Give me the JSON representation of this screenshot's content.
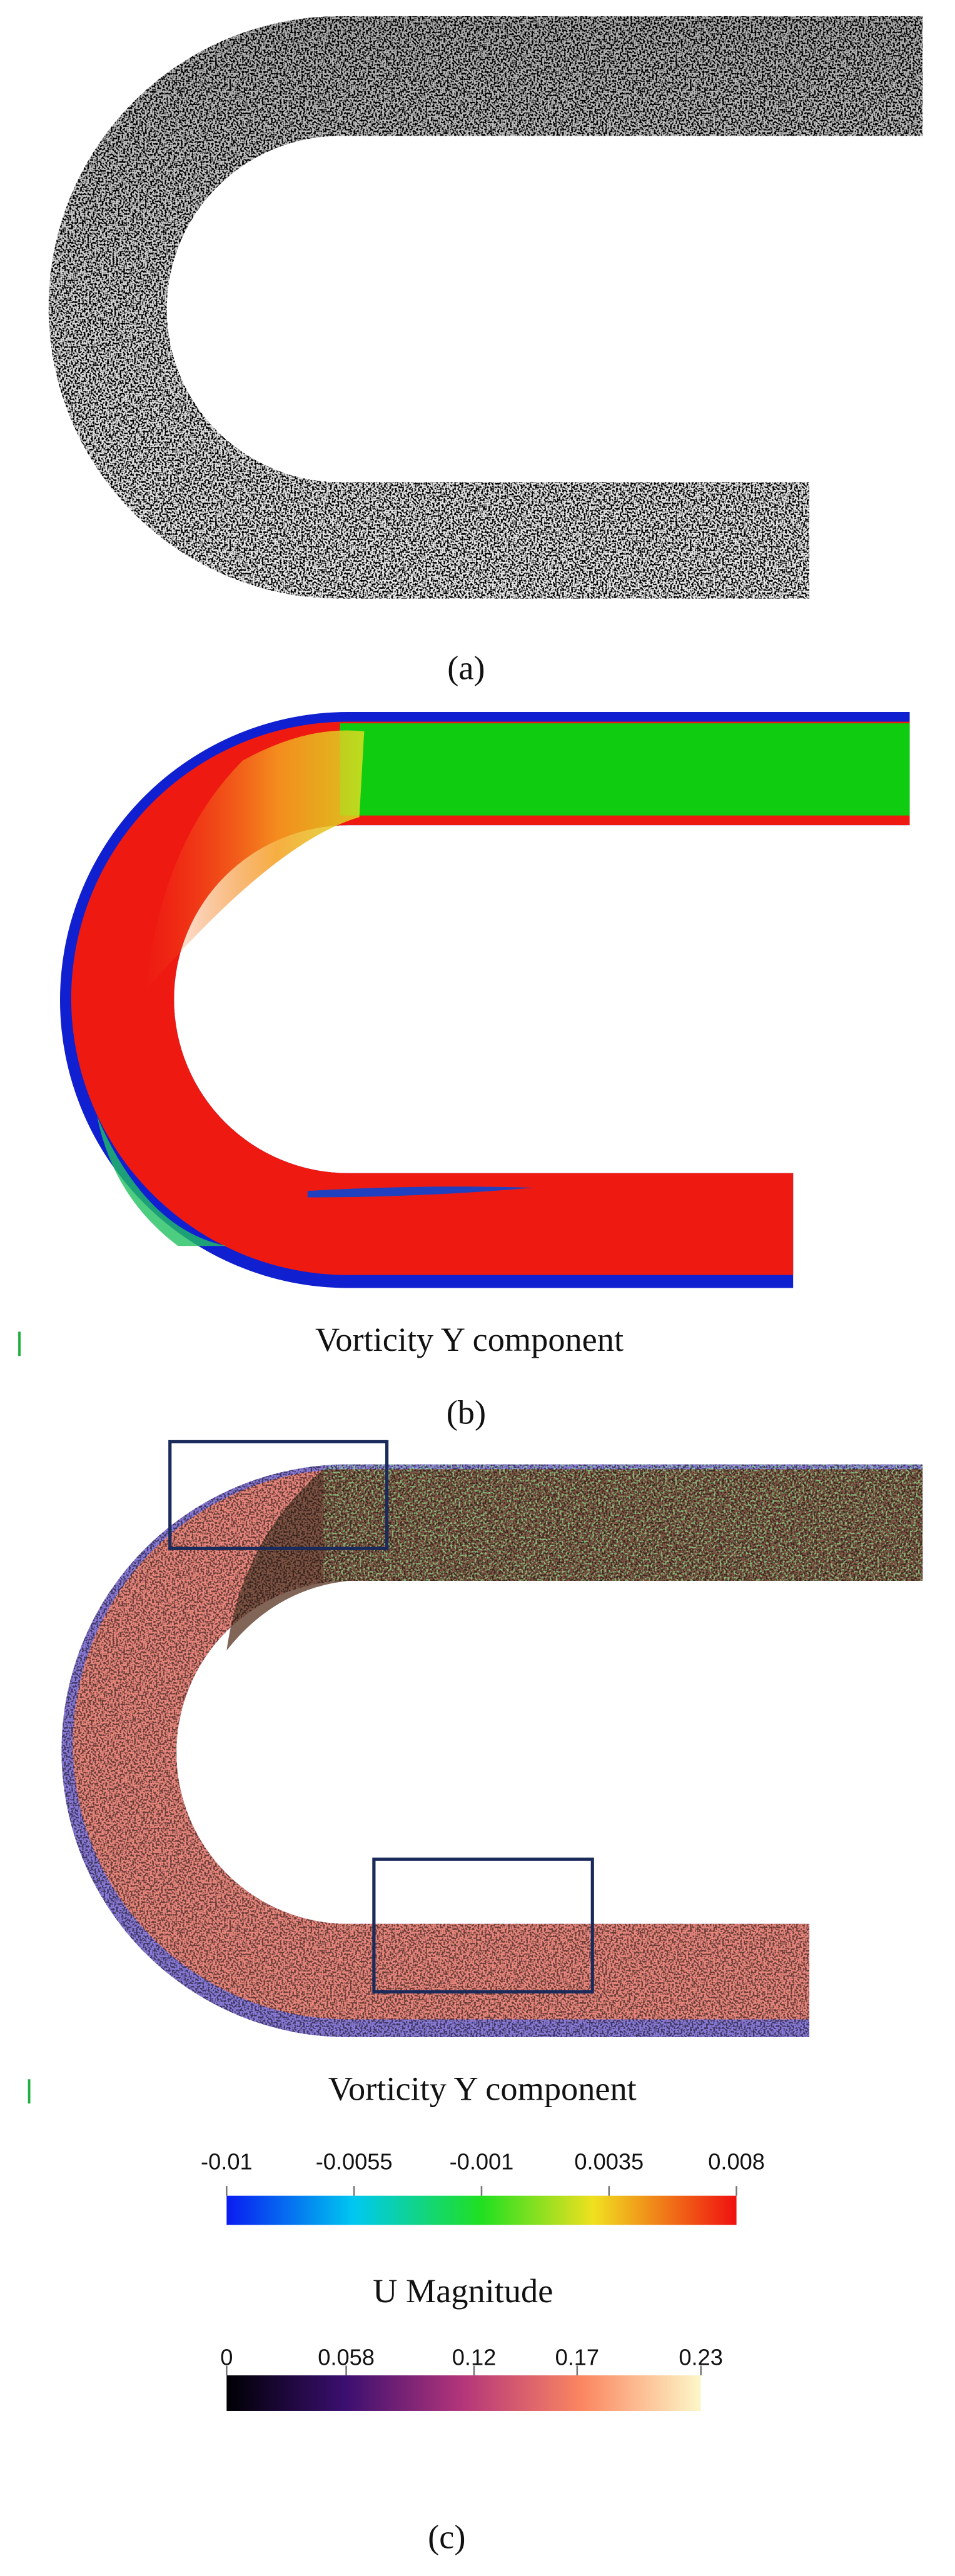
{
  "figure": {
    "panels": [
      {
        "label": "(a)"
      },
      {
        "label": "(b)",
        "caption": "Vorticity Y component"
      },
      {
        "label": "(c)",
        "caption": "Vorticity Y component"
      }
    ],
    "colorbars": [
      {
        "ticks": [
          -0.01,
          -0.0055,
          -0.001,
          0.0035,
          0.008
        ]
      },
      {
        "title": "U Magnitude",
        "ticks": [
          0,
          0.058,
          0.12,
          0.17,
          0.23
        ]
      }
    ]
  }
}
